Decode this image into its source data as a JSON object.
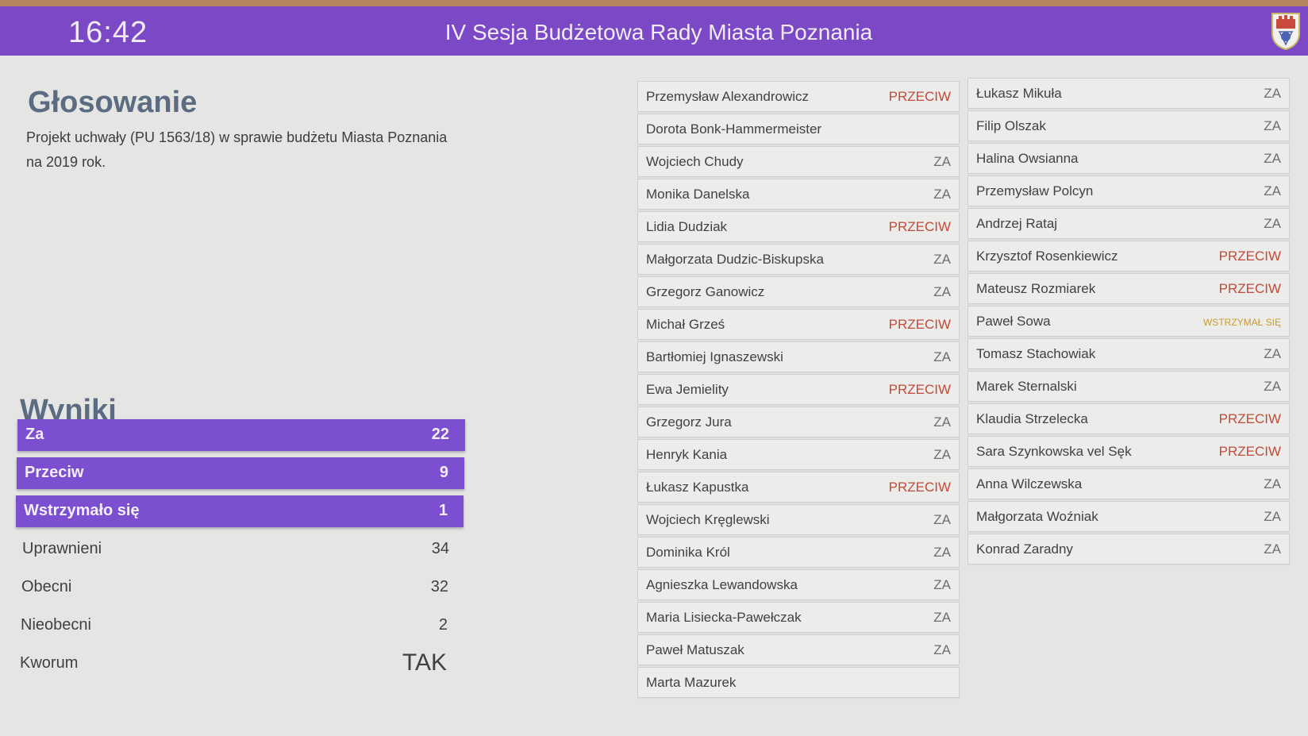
{
  "header": {
    "time": "16:42",
    "title": "IV Sesja Budżetowa Rady Miasta Poznania",
    "crest_icon": "poznan-coat-of-arms-icon"
  },
  "voting": {
    "title": "Głosowanie",
    "description": "Projekt uchwały (PU 1563/18) w sprawie budżetu Miasta Poznania na 2019 rok."
  },
  "results": {
    "title": "Wyniki",
    "bars": [
      {
        "label": "Za",
        "value": "22"
      },
      {
        "label": "Przeciw",
        "value": "9"
      },
      {
        "label": "Wstrzymało się",
        "value": "1"
      }
    ],
    "stats": [
      {
        "label": "Uprawnieni",
        "value": "34"
      },
      {
        "label": "Obecni",
        "value": "32"
      },
      {
        "label": "Nieobecni",
        "value": "2"
      },
      {
        "label": "Kworum",
        "value": "TAK"
      }
    ]
  },
  "colors": {
    "header": "#7b48c6",
    "bar": "#7c4ed0",
    "za": "#6a6e75",
    "przeciw": "#c24a3a",
    "wstrzymal": "#c99a30"
  },
  "councillors_left": [
    {
      "name": "Przemysław Alexandrowicz",
      "vote": "PRZECIW"
    },
    {
      "name": "Dorota Bonk-Hammermeister",
      "vote": ""
    },
    {
      "name": "Wojciech Chudy",
      "vote": "ZA"
    },
    {
      "name": "Monika Danelska",
      "vote": "ZA"
    },
    {
      "name": "Lidia Dudziak",
      "vote": "PRZECIW"
    },
    {
      "name": "Małgorzata Dudzic-Biskupska",
      "vote": "ZA"
    },
    {
      "name": "Grzegorz Ganowicz",
      "vote": "ZA"
    },
    {
      "name": "Michał Grześ",
      "vote": "PRZECIW"
    },
    {
      "name": "Bartłomiej Ignaszewski",
      "vote": "ZA"
    },
    {
      "name": "Ewa Jemielity",
      "vote": "PRZECIW"
    },
    {
      "name": "Grzegorz Jura",
      "vote": "ZA"
    },
    {
      "name": "Henryk Kania",
      "vote": "ZA"
    },
    {
      "name": "Łukasz Kapustka",
      "vote": "PRZECIW"
    },
    {
      "name": "Wojciech Kręglewski",
      "vote": "ZA"
    },
    {
      "name": "Dominika Król",
      "vote": "ZA"
    },
    {
      "name": "Agnieszka Lewandowska",
      "vote": "ZA"
    },
    {
      "name": "Maria Lisiecka-Pawełczak",
      "vote": "ZA"
    },
    {
      "name": "Paweł Matuszak",
      "vote": "ZA"
    },
    {
      "name": "Marta Mazurek",
      "vote": ""
    }
  ],
  "councillors_right": [
    {
      "name": "Łukasz Mikuła",
      "vote": "ZA"
    },
    {
      "name": "Filip Olszak",
      "vote": "ZA"
    },
    {
      "name": "Halina Owsianna",
      "vote": "ZA"
    },
    {
      "name": "Przemysław Polcyn",
      "vote": "ZA"
    },
    {
      "name": "Andrzej Rataj",
      "vote": "ZA"
    },
    {
      "name": "Krzysztof Rosenkiewicz",
      "vote": "PRZECIW"
    },
    {
      "name": "Mateusz Rozmiarek",
      "vote": "PRZECIW"
    },
    {
      "name": "Paweł Sowa",
      "vote": "WSTRZYMAŁ SIĘ"
    },
    {
      "name": "Tomasz Stachowiak",
      "vote": "ZA"
    },
    {
      "name": "Marek Sternalski",
      "vote": "ZA"
    },
    {
      "name": "Klaudia Strzelecka",
      "vote": "PRZECIW"
    },
    {
      "name": "Sara Szynkowska vel Sęk",
      "vote": "PRZECIW"
    },
    {
      "name": "Anna Wilczewska",
      "vote": "ZA"
    },
    {
      "name": "Małgorzata Woźniak",
      "vote": "ZA"
    },
    {
      "name": "Konrad Zaradny",
      "vote": "ZA"
    }
  ]
}
